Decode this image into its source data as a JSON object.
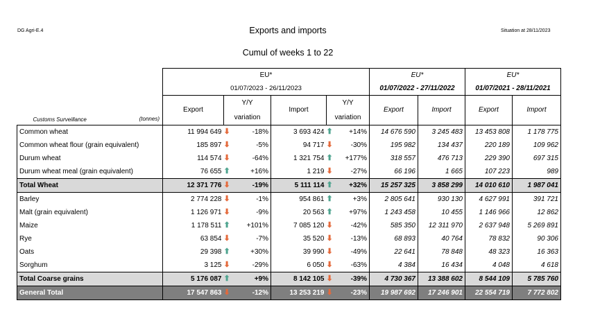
{
  "header": {
    "left_code": "DG Agri-E.4",
    "title": "Exports and imports",
    "situation": "Situation at 28/11/2023",
    "subtitle": "Cumul of weeks 1 to 22"
  },
  "columns": {
    "group1_title": "EU*",
    "group1_period": "01/07/2023 - 26/11/2023",
    "group2_title": "EU*",
    "group2_period": "01/07/2022 - 27/11/2022",
    "group3_title": "EU*",
    "group3_period": "01/07/2021 - 28/11/2021",
    "export": "Export",
    "import": "Import",
    "yy_line1": "Y/Y",
    "yy_line2": "variation",
    "customs": "Customs Surveillance",
    "tonnes": "(tonnes)"
  },
  "rows": [
    {
      "name": "Common wheat",
      "exp": "11 994 649",
      "exp_dir": "down",
      "exp_var": "-18%",
      "imp": "3 693 424",
      "imp_dir": "up",
      "imp_var": "+14%",
      "e22": "14 676 590",
      "i22": "3 245 483",
      "e21": "13 453 808",
      "i21": "1 178 775",
      "type": "normal"
    },
    {
      "name": "Common wheat flour (grain equivalent)",
      "exp": "185 897",
      "exp_dir": "down",
      "exp_var": "-5%",
      "imp": "94 717",
      "imp_dir": "down",
      "imp_var": "-30%",
      "e22": "195 982",
      "i22": "134 437",
      "e21": "220 189",
      "i21": "109 962",
      "type": "normal"
    },
    {
      "name": "Durum wheat",
      "exp": "114 574",
      "exp_dir": "down",
      "exp_var": "-64%",
      "imp": "1 321 754",
      "imp_dir": "up",
      "imp_var": "+177%",
      "e22": "318 557",
      "i22": "476 713",
      "e21": "229 390",
      "i21": "697 315",
      "type": "normal"
    },
    {
      "name": "Durum wheat meal (grain equivalent)",
      "exp": "76 655",
      "exp_dir": "up",
      "exp_var": "+16%",
      "imp": "1 219",
      "imp_dir": "down",
      "imp_var": "-27%",
      "e22": "66 196",
      "i22": "1 665",
      "e21": "107 223",
      "i21": "989",
      "type": "normal"
    },
    {
      "name": "Total Wheat",
      "exp": "12 371 776",
      "exp_dir": "down",
      "exp_var": "-19%",
      "imp": "5 111 114",
      "imp_dir": "up",
      "imp_var": "+32%",
      "e22": "15 257 325",
      "i22": "3 858 299",
      "e21": "14 010 610",
      "i21": "1 987 041",
      "type": "total"
    },
    {
      "name": "Barley",
      "exp": "2 774 228",
      "exp_dir": "down",
      "exp_var": "-1%",
      "imp": "954 861",
      "imp_dir": "up",
      "imp_var": "+3%",
      "e22": "2 805 641",
      "i22": "930 130",
      "e21": "4 627 991",
      "i21": "391 721",
      "type": "normal"
    },
    {
      "name": "Malt (grain equivalent)",
      "exp": "1 126 971",
      "exp_dir": "down",
      "exp_var": "-9%",
      "imp": "20 563",
      "imp_dir": "up",
      "imp_var": "+97%",
      "e22": "1 243 458",
      "i22": "10 455",
      "e21": "1 146 966",
      "i21": "12 862",
      "type": "normal"
    },
    {
      "name": "Maize",
      "exp": "1 178 511",
      "exp_dir": "up",
      "exp_var": "+101%",
      "imp": "7 085 120",
      "imp_dir": "down",
      "imp_var": "-42%",
      "e22": "585 350",
      "i22": "12 311 970",
      "e21": "2 637 948",
      "i21": "5 269 891",
      "type": "normal"
    },
    {
      "name": "Rye",
      "exp": "63 854",
      "exp_dir": "down",
      "exp_var": "-7%",
      "imp": "35 520",
      "imp_dir": "down",
      "imp_var": "-13%",
      "e22": "68 893",
      "i22": "40 764",
      "e21": "78 832",
      "i21": "90 306",
      "type": "normal"
    },
    {
      "name": "Oats",
      "exp": "29 398",
      "exp_dir": "up",
      "exp_var": "+30%",
      "imp": "39 990",
      "imp_dir": "down",
      "imp_var": "-49%",
      "e22": "22 641",
      "i22": "78 848",
      "e21": "48 323",
      "i21": "16 363",
      "type": "normal"
    },
    {
      "name": "Sorghum",
      "exp": "3 125",
      "exp_dir": "down",
      "exp_var": "-29%",
      "imp": "6 050",
      "imp_dir": "down",
      "imp_var": "-63%",
      "e22": "4 384",
      "i22": "16 434",
      "e21": "4 048",
      "i21": "4 618",
      "type": "normal"
    },
    {
      "name": "Total Coarse grains",
      "exp": "5 176 087",
      "exp_dir": "up",
      "exp_var": "+9%",
      "imp": "8 142 105",
      "imp_dir": "down",
      "imp_var": "-39%",
      "e22": "4 730 367",
      "i22": "13 388 602",
      "e21": "8 544 109",
      "i21": "5 785 760",
      "type": "total"
    },
    {
      "name": "General Total",
      "exp": "17 547 863",
      "exp_dir": "down",
      "exp_var": "-12%",
      "imp": "13 253 219",
      "imp_dir": "down",
      "imp_var": "-23%",
      "e22": "19 987 692",
      "i22": "17 246 901",
      "e21": "22 554 719",
      "i21": "7 772 802",
      "type": "general"
    }
  ],
  "colors": {
    "up_arrow": "#4ea48f",
    "down_arrow": "#e46a3c",
    "total_bg": "#d9d9d9",
    "general_bg": "#7f7f7f"
  },
  "icons": {
    "up": "arrow-up-icon",
    "down": "arrow-down-icon"
  }
}
